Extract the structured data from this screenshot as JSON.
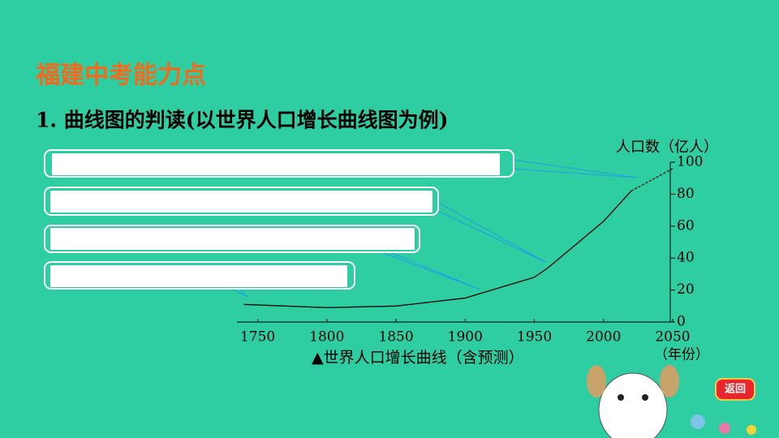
{
  "header": {
    "title": "福建中考能力点",
    "subtitle": "1. 曲线图的判读(以世界人口增长曲线图为例)",
    "back": "返回"
  },
  "chart_data": {
    "type": "line",
    "caption": "▲世界人口增长曲线（含预测）",
    "y_label": "人口数（亿人）",
    "x_label": "（年份）",
    "x": [
      1740,
      1800,
      1850,
      1900,
      1950,
      1960,
      2000,
      2020,
      2050
    ],
    "series": [
      {
        "color": "#000000",
        "dashed": false,
        "values": [
          11,
          9,
          10,
          15,
          28,
          34,
          63,
          82,
          null
        ]
      },
      {
        "color": "#000000",
        "dashed": true,
        "values": [
          null,
          null,
          null,
          null,
          null,
          null,
          null,
          82,
          96
        ]
      }
    ],
    "xlim": [
      1735,
      2050
    ],
    "xticks": [
      1750,
      1800,
      1850,
      1900,
      1950,
      2000,
      2050
    ],
    "ylim": [
      0,
      100
    ],
    "yticks": [
      0,
      20,
      40,
      60,
      80,
      100
    ]
  }
}
